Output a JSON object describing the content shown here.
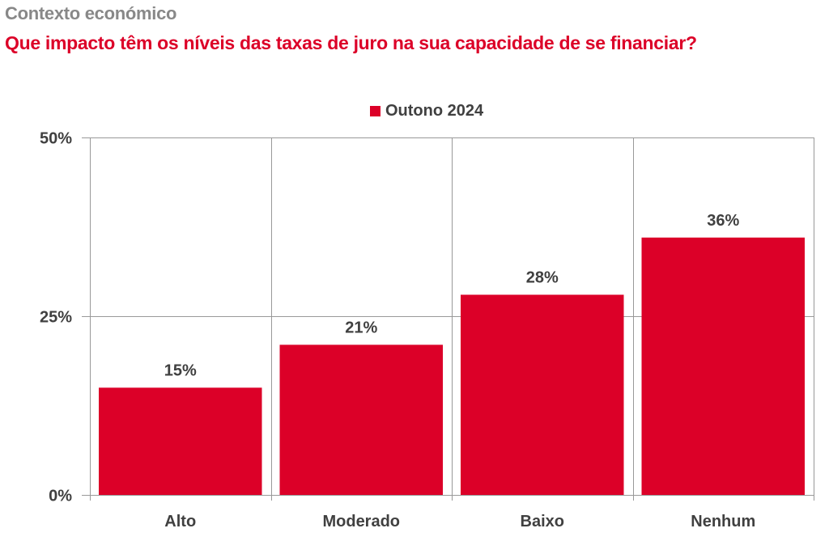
{
  "header": {
    "subtitle": "Contexto económico",
    "title": "Que impacto têm os níveis das taxas de juro na sua capacidade de se financiar?"
  },
  "colors": {
    "bar": "#DC0028",
    "title": "#DC0028",
    "subtitle": "#888888",
    "text": "#404040",
    "grid": "#999999"
  },
  "chart_data": {
    "type": "bar",
    "title": "Que impacto têm os níveis das taxas de juro na sua capacidade de se financiar?",
    "subtitle": "Contexto económico",
    "categories": [
      "Alto",
      "Moderado",
      "Baixo",
      "Nenhum"
    ],
    "series": [
      {
        "name": "Outono 2024",
        "values": [
          15,
          21,
          28,
          36
        ],
        "color": "#DC0028"
      }
    ],
    "data_labels": [
      "15%",
      "21%",
      "28%",
      "36%"
    ],
    "xlabel": "",
    "ylabel": "",
    "ylim": [
      0,
      50
    ],
    "yticks": [
      0,
      25,
      50
    ],
    "ytick_labels": [
      "0%",
      "25%",
      "50%"
    ],
    "grid": true,
    "legend": {
      "position": "top-center",
      "entries": [
        "Outono 2024"
      ]
    }
  }
}
